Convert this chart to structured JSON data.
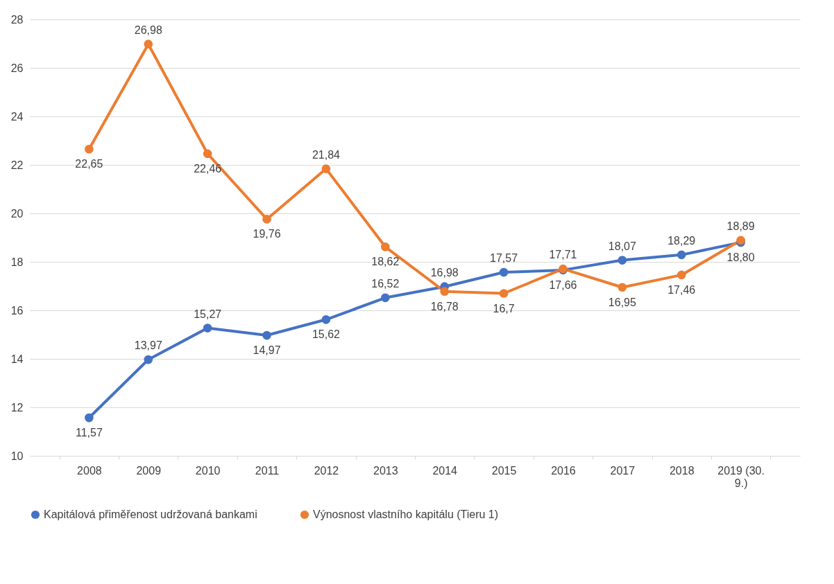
{
  "chart_data": {
    "type": "line",
    "categories": [
      "2008",
      "2009",
      "2010",
      "2011",
      "2012",
      "2013",
      "2014",
      "2015",
      "2016",
      "2017",
      "2018",
      "2019 (30. 9.)"
    ],
    "ylim": [
      10,
      28
    ],
    "yticks": [
      10,
      12,
      14,
      16,
      18,
      20,
      22,
      24,
      26,
      28
    ],
    "grid": "y",
    "legend": "bottom",
    "marker": "circle",
    "line_style": "solid",
    "series": [
      {
        "name": "Kapitálová přiměřenost udržovaná bankami",
        "color": "#4472c4",
        "values": [
          11.57,
          13.97,
          15.27,
          14.97,
          15.62,
          16.52,
          16.98,
          17.57,
          17.66,
          18.07,
          18.29,
          18.8
        ],
        "value_labels": [
          "11,57",
          "13,97",
          "15,27",
          "14,97",
          "15,62",
          "16,52",
          "16,98",
          "17,57",
          "17,66",
          "18,07",
          "18,29",
          "18,80"
        ]
      },
      {
        "name": "Výnosnost vlastního kapitálu (Tieru 1)",
        "color": "#ed7d31",
        "values": [
          22.65,
          26.98,
          22.46,
          19.76,
          21.84,
          18.62,
          16.78,
          16.7,
          17.71,
          16.95,
          17.46,
          18.89
        ],
        "value_labels": [
          "22,65",
          "26,98",
          "22,46",
          "19,76",
          "21,84",
          "18,62",
          "16,78",
          "16,7",
          "17,71",
          "16,95",
          "17,46",
          "18,89"
        ]
      }
    ]
  }
}
